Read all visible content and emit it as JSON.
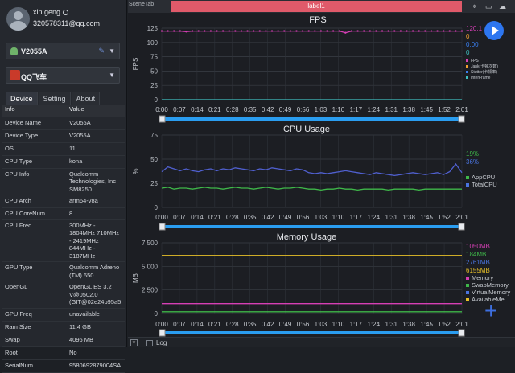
{
  "user": {
    "name": "xin geng",
    "email": "320578311@qq.com"
  },
  "device_select": {
    "value": "V2055A"
  },
  "app_select": {
    "value": "QQ飞车"
  },
  "tabs": [
    "Device",
    "Setting",
    "About"
  ],
  "info_table": {
    "headers": [
      "Info",
      "Value"
    ],
    "rows": [
      [
        "Device Name",
        "V2055A"
      ],
      [
        "Device Type",
        "V2055A"
      ],
      [
        "OS",
        "11"
      ],
      [
        "CPU Type",
        "kona"
      ],
      [
        "CPU Info",
        "Qualcomm Technologies, Inc SM8250"
      ],
      [
        "CPU Arch",
        "arm64-v8a"
      ],
      [
        "CPU CoreNum",
        "8"
      ],
      [
        "CPU Freq",
        "300MHz - 1804MHz 710MHz - 2419MHz 844MHz - 3187MHz"
      ],
      [
        "GPU Type",
        "Qualcomm Adreno (TM) 650"
      ],
      [
        "OpenGL",
        "OpenGL ES 3.2 V@0502.0 (GIT@02e24b95a5"
      ],
      [
        "GPU Freq",
        "unavailable"
      ],
      [
        "Ram Size",
        "11.4 GB"
      ],
      [
        "Swap",
        "4096 MB"
      ],
      [
        "Root",
        "No"
      ],
      [
        "SerialNum",
        "9580692879004SA"
      ]
    ]
  },
  "topbar": {
    "scene_tab": "SceneTab",
    "label": "label1"
  },
  "icons": [
    "location-icon",
    "folder-icon",
    "cloud-icon",
    "play-icon",
    "plus-icon"
  ],
  "time_ticks": [
    "0:00",
    "0:07",
    "0:14",
    "0:21",
    "0:28",
    "0:35",
    "0:42",
    "0:49",
    "0:56",
    "1:03",
    "1:10",
    "1:17",
    "1:24",
    "1:31",
    "1:38",
    "1:45",
    "1:52",
    "2:01"
  ],
  "bottom": {
    "log_label": "Log"
  },
  "chart_data": [
    {
      "type": "line",
      "title": "FPS",
      "ylabel": "FPS",
      "ylim": [
        0,
        125
      ],
      "yticks": [
        "0",
        "25",
        "50",
        "75",
        "100",
        "125"
      ],
      "values_text": [
        "120.1",
        "0",
        "0.00",
        "0"
      ],
      "value_colors": [
        "#d63fb5",
        "#f0a030",
        "#3a7ff0",
        "#3fc0c0"
      ],
      "legend": [
        "FPS",
        "Jank(卡顿次数)",
        "Stutter(卡顿率)",
        "InterFrame"
      ],
      "series": [
        {
          "name": "FPS",
          "color": "#d63fb5",
          "values": [
            120,
            120,
            120,
            120,
            119,
            120,
            120,
            120,
            120,
            120,
            120,
            120,
            120,
            120,
            120,
            120,
            120,
            120,
            120,
            120,
            120,
            120,
            120,
            120,
            120,
            120,
            120,
            120,
            120,
            120,
            117,
            120,
            120,
            120,
            120,
            120,
            120,
            120,
            120,
            120,
            120,
            120,
            120,
            120,
            120,
            120,
            120,
            120,
            120,
            120
          ]
        },
        {
          "name": "InterFrame",
          "color": "#3fc0c0",
          "values": [
            0,
            0,
            0,
            0,
            0,
            0,
            0,
            0,
            0,
            0,
            0,
            0,
            0,
            0,
            0,
            0,
            0,
            0,
            0,
            0,
            0,
            0,
            0,
            0,
            0,
            0,
            0,
            0,
            0,
            0,
            0,
            0,
            0,
            0,
            0,
            0,
            0,
            0,
            0,
            0,
            0,
            0,
            0,
            0,
            0,
            0,
            0,
            0,
            0,
            0
          ]
        }
      ]
    },
    {
      "type": "line",
      "title": "CPU Usage",
      "ylabel": "%",
      "ylim": [
        0,
        75
      ],
      "yticks": [
        "0",
        "25",
        "50",
        "75"
      ],
      "values_text": [
        "19%",
        "36%"
      ],
      "value_colors": [
        "#3fb84a",
        "#4a74e0"
      ],
      "legend": [
        "AppCPU",
        "TotalCPU"
      ],
      "series": [
        {
          "name": "TotalCPU",
          "color": "#5060d0",
          "values": [
            37,
            42,
            40,
            38,
            40,
            38,
            37,
            39,
            40,
            38,
            40,
            39,
            41,
            40,
            39,
            38,
            40,
            39,
            41,
            40,
            39,
            38,
            40,
            39,
            36,
            35,
            36,
            35,
            36,
            37,
            38,
            37,
            36,
            35,
            34,
            36,
            35,
            34,
            33,
            34,
            35,
            36,
            35,
            34,
            35,
            36,
            34,
            37,
            45,
            36
          ]
        },
        {
          "name": "AppCPU",
          "color": "#3fb84a",
          "values": [
            20,
            21,
            19,
            20,
            20,
            19,
            20,
            21,
            20,
            20,
            19,
            20,
            21,
            20,
            20,
            19,
            20,
            21,
            20,
            19,
            20,
            20,
            21,
            20,
            19,
            19,
            18,
            19,
            19,
            20,
            19,
            19,
            18,
            19,
            19,
            19,
            19,
            18,
            19,
            19,
            19,
            19,
            18,
            19,
            19,
            19,
            19,
            19,
            19,
            19
          ]
        }
      ]
    },
    {
      "type": "line",
      "title": "Memory Usage",
      "ylabel": "MB",
      "ylim": [
        0,
        7500
      ],
      "yticks": [
        "0",
        "2,500",
        "5,000",
        "7,500"
      ],
      "values_text": [
        "1050MB",
        "184MB",
        "2761MB",
        "6155MB"
      ],
      "value_colors": [
        "#d63fb5",
        "#3fb84a",
        "#4a74e0",
        "#e8c028"
      ],
      "legend": [
        "Memory",
        "SwapMemory",
        "VirtualMemory",
        "AvailableMe..."
      ],
      "series": [
        {
          "name": "AvailableMemory",
          "color": "#e8c028",
          "values": [
            6150,
            6150,
            6155,
            6155,
            6150,
            6155,
            6155,
            6150,
            6155,
            6155,
            6150,
            6155
          ]
        },
        {
          "name": "Memory",
          "color": "#d63fb5",
          "values": [
            1050,
            1050,
            1050,
            1050,
            1050,
            1050,
            1050,
            1050,
            1050,
            1050,
            1050,
            1050
          ]
        },
        {
          "name": "SwapMemory",
          "color": "#3fb84a",
          "values": [
            184,
            184,
            184,
            184,
            184,
            184,
            184,
            184,
            184,
            184,
            184,
            184
          ]
        }
      ]
    }
  ]
}
